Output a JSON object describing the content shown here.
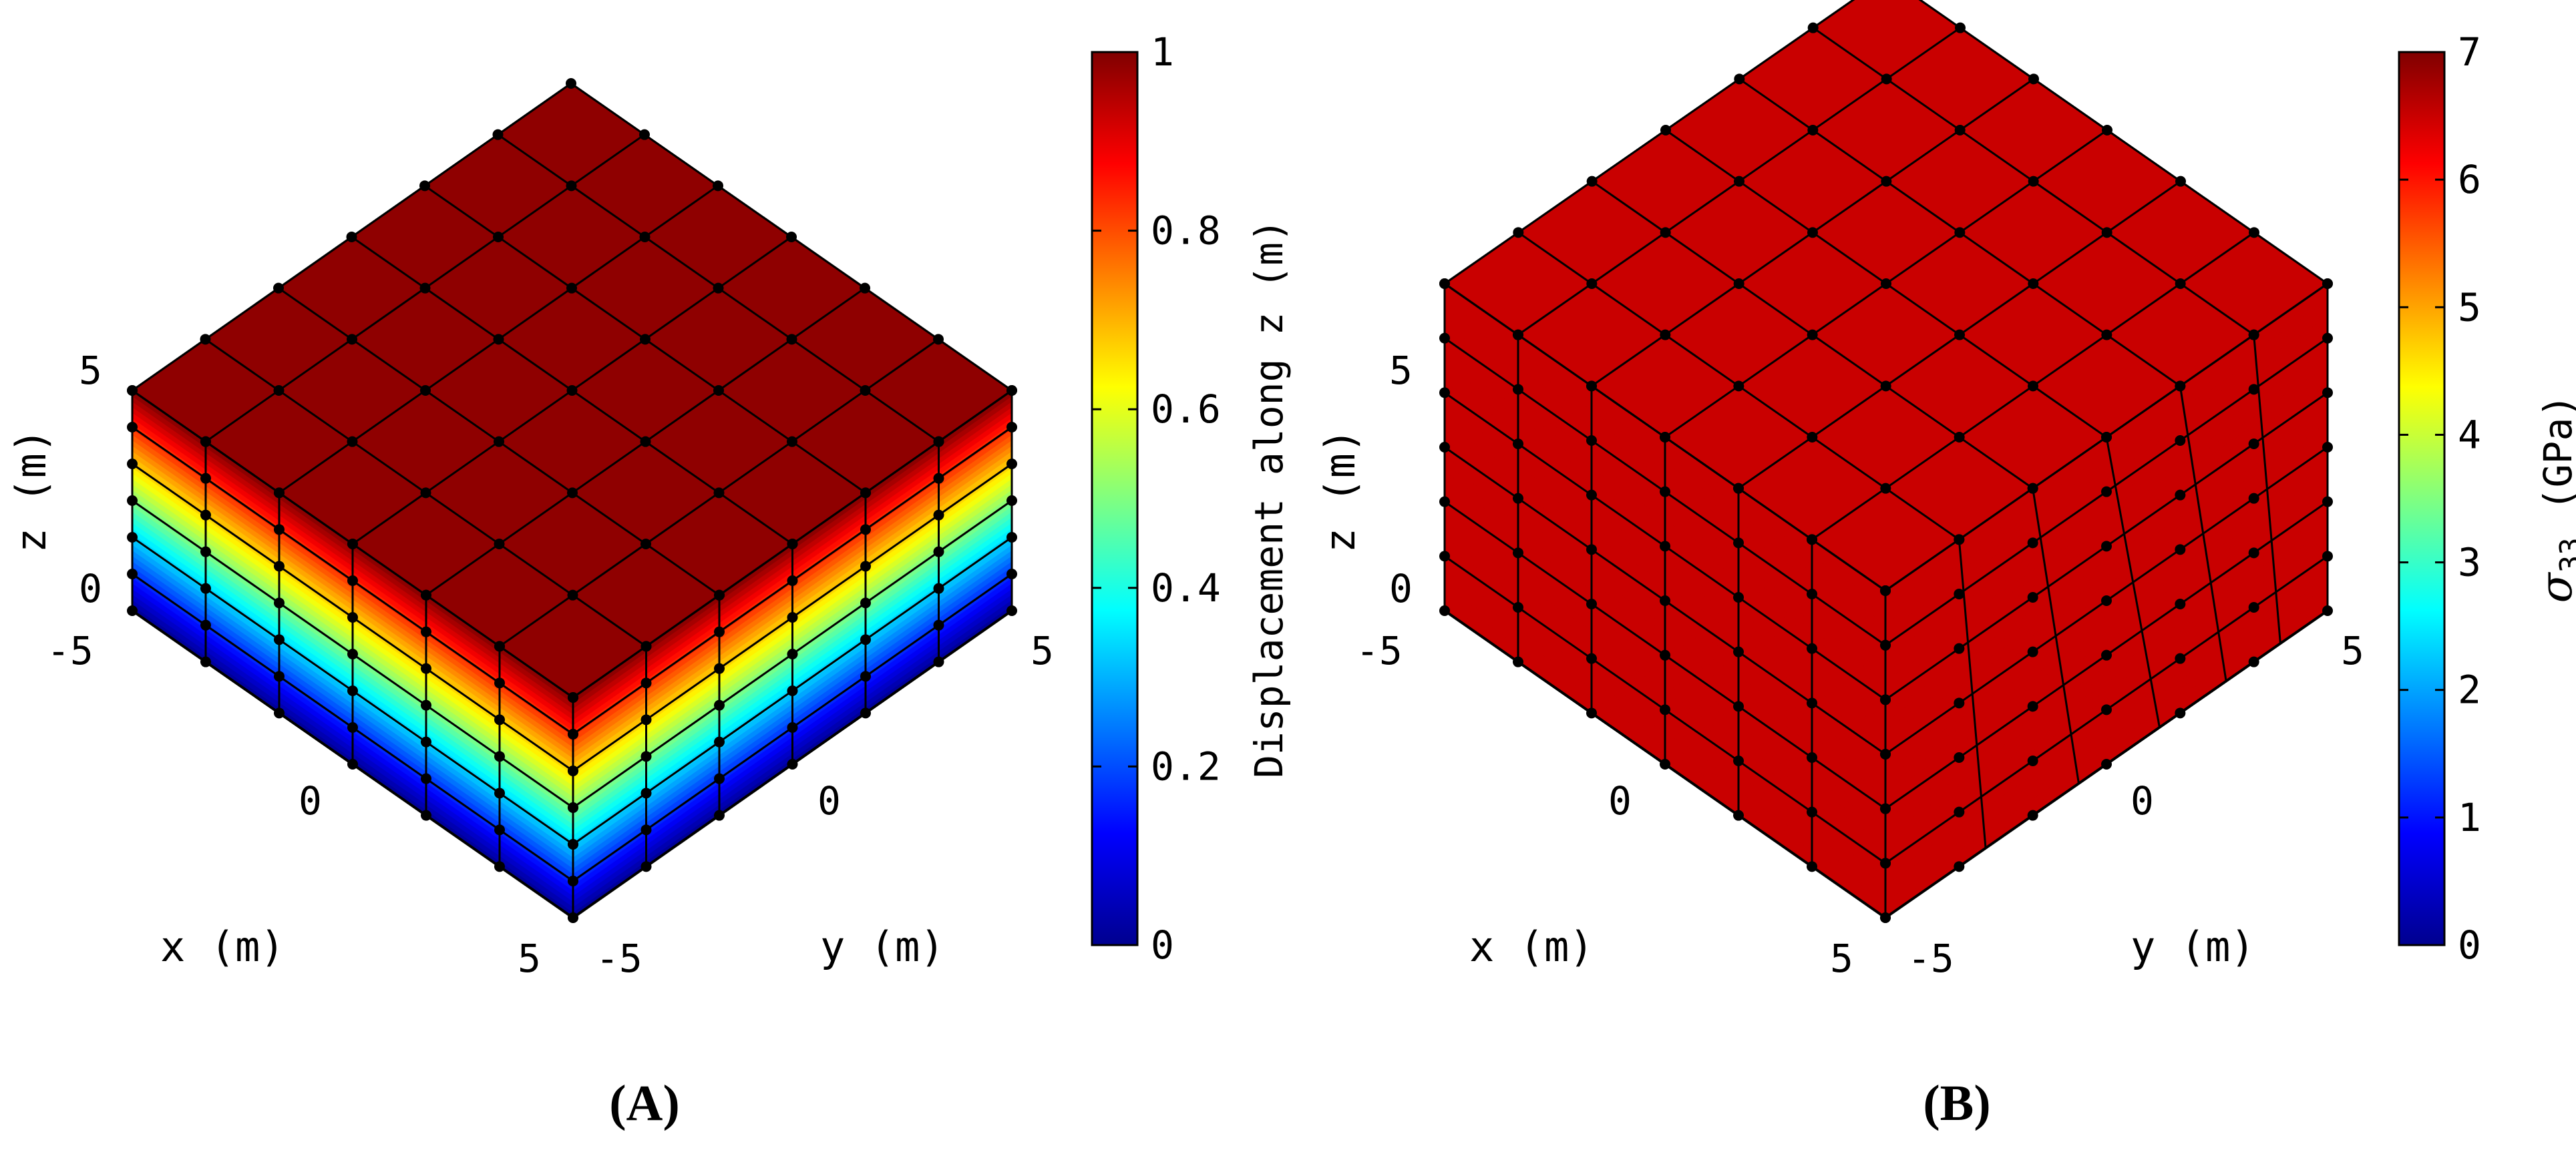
{
  "chart_data": [
    {
      "type": "surface3d",
      "panel_label": "A",
      "caption": {
        "open": "(",
        "letter": "A",
        "close": ")"
      },
      "x_axis": {
        "label": "x (m)",
        "range": [
          -5,
          5
        ],
        "ticks": [
          "5",
          "0",
          "-5"
        ]
      },
      "y_axis": {
        "label": "y (m)",
        "range": [
          -5,
          5
        ],
        "ticks": [
          "-5",
          "0",
          "5"
        ]
      },
      "z_axis": {
        "label": "z (m)",
        "range": [
          0,
          5
        ],
        "ticks": [
          "0",
          "5"
        ]
      },
      "mesh_divisions": {
        "x": 6,
        "y": 6,
        "z": 6
      },
      "colorbar": {
        "label": "Displacement along z (m)",
        "range": [
          0,
          1
        ],
        "ticks": [
          "0",
          "0.2",
          "0.4",
          "0.6",
          "0.8",
          "1"
        ]
      },
      "field": "displacement_z",
      "field_description": {
        "top_face_value": 1,
        "bottom_value": 0,
        "variation": "linear in z"
      }
    },
    {
      "type": "surface3d",
      "panel_label": "B",
      "caption": {
        "open": "(",
        "letter": "B",
        "close": ")"
      },
      "x_axis": {
        "label": "x (m)",
        "range": [
          -5,
          5
        ],
        "ticks": [
          "5",
          "0",
          "-5"
        ]
      },
      "y_axis": {
        "label": "y (m)",
        "range": [
          -5,
          5
        ],
        "ticks": [
          "-5",
          "0",
          "5"
        ]
      },
      "z_axis": {
        "label": "z (m)",
        "range": [
          0,
          5
        ],
        "ticks": [
          "0",
          "5"
        ]
      },
      "mesh_divisions": {
        "x": 6,
        "y": 6,
        "z": 6
      },
      "colorbar": {
        "label_symbol": "σ",
        "label_subscript": "33",
        "label_unit": "(GPa)",
        "range": [
          0,
          7
        ],
        "ticks": [
          "0",
          "1",
          "2",
          "3",
          "4",
          "5",
          "6",
          "7"
        ]
      },
      "field": "sigma_33",
      "field_description": {
        "uniform_value": 6.5
      }
    }
  ],
  "colors": {
    "jet": [
      "#00008f",
      "#0000ff",
      "#0080ff",
      "#00ffff",
      "#80ff80",
      "#ffff00",
      "#ff8000",
      "#ff0000",
      "#800000"
    ],
    "mesh_line": "#000000",
    "node": "#000000"
  }
}
